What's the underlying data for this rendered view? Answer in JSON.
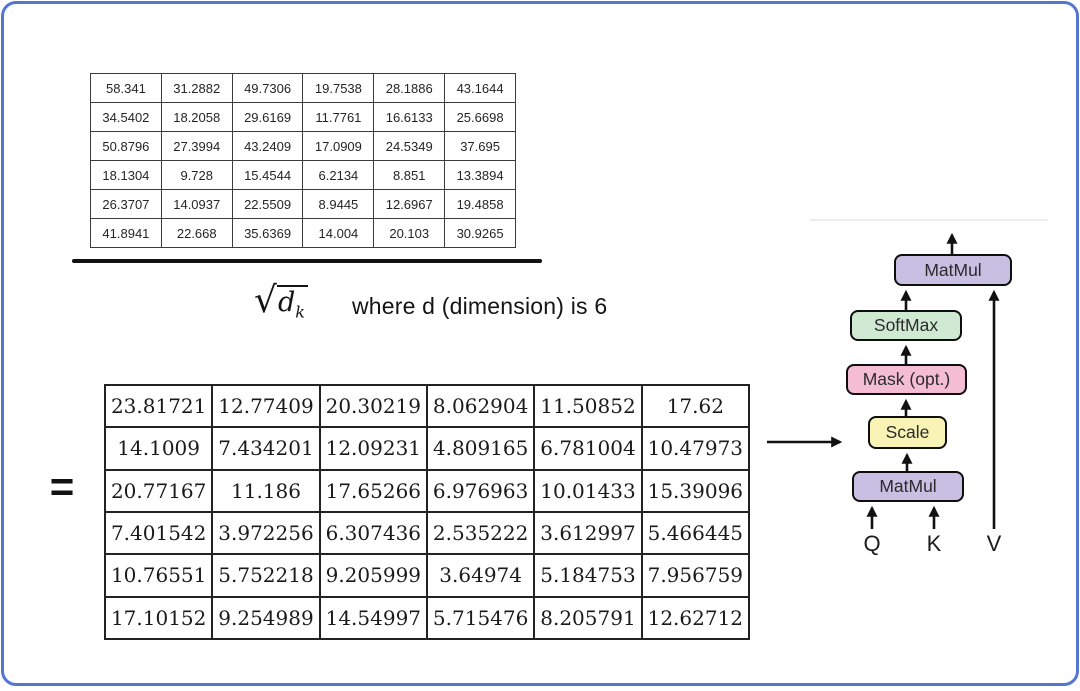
{
  "frame": {
    "border_color": "#5377d1",
    "background": "#ffffff"
  },
  "equation": {
    "equals_sign": "=",
    "numerator_matrix": {
      "rows": [
        [
          "58.341",
          "31.2882",
          "49.7306",
          "19.7538",
          "28.1886",
          "43.1644"
        ],
        [
          "34.5402",
          "18.2058",
          "29.6169",
          "11.7761",
          "16.6133",
          "25.6698"
        ],
        [
          "50.8796",
          "27.3994",
          "43.2409",
          "17.0909",
          "24.5349",
          "37.695"
        ],
        [
          "18.1304",
          "9.728",
          "15.4544",
          "6.2134",
          "8.851",
          "13.3894"
        ],
        [
          "26.3707",
          "14.0937",
          "22.5509",
          "8.9445",
          "12.6967",
          "19.4858"
        ],
        [
          "41.8941",
          "22.668",
          "35.6369",
          "14.004",
          "20.103",
          "30.9265"
        ]
      ]
    },
    "denominator": {
      "radical_symbol": "√",
      "variable": "d",
      "subscript": "k",
      "note": "where d (dimension) is 6"
    },
    "result_matrix": {
      "rows": [
        [
          "23.81721",
          "12.77409",
          "20.30219",
          "8.062904",
          "11.50852",
          "17.62"
        ],
        [
          "14.1009",
          "7.434201",
          "12.09231",
          "4.809165",
          "6.781004",
          "10.47973"
        ],
        [
          "20.77167",
          "11.186",
          "17.65266",
          "6.976963",
          "10.01433",
          "15.39096"
        ],
        [
          "7.401542",
          "3.972256",
          "6.307436",
          "2.535222",
          "3.612997",
          "5.466445"
        ],
        [
          "10.76551",
          "5.752218",
          "9.205999",
          "3.64974",
          "5.184753",
          "7.956759"
        ],
        [
          "17.10152",
          "9.254989",
          "14.54997",
          "5.715476",
          "8.205791",
          "12.62712"
        ]
      ]
    }
  },
  "diagram": {
    "blocks": [
      {
        "id": "matmul-top",
        "label": "MatMul",
        "color": "#c8bfe3"
      },
      {
        "id": "softmax",
        "label": "SoftMax",
        "color": "#cfe9d3"
      },
      {
        "id": "mask",
        "label": "Mask (opt.)",
        "color": "#f5bdd3"
      },
      {
        "id": "scale",
        "label": "Scale",
        "color": "#f9f3b5"
      },
      {
        "id": "matmul-bottom",
        "label": "MatMul",
        "color": "#c8bfe3"
      }
    ],
    "inputs": [
      {
        "label": "Q"
      },
      {
        "label": "K"
      },
      {
        "label": "V"
      }
    ],
    "arrow_color": "#111111"
  }
}
